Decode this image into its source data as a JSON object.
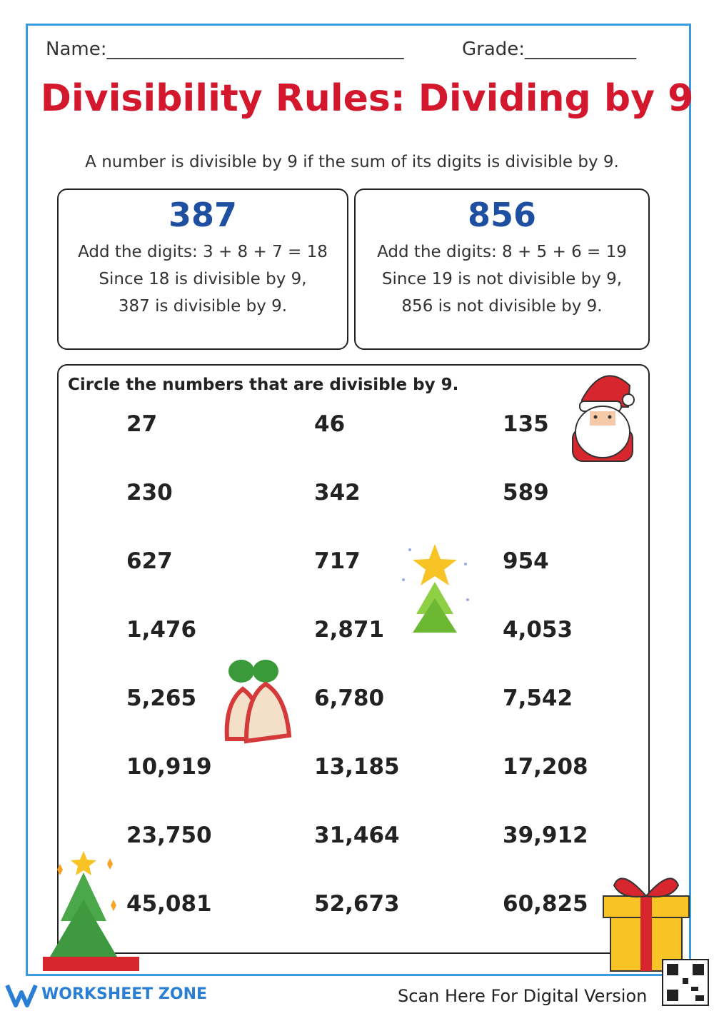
{
  "header": {
    "name_label": "Name:________________________________",
    "grade_label": "Grade:____________",
    "title": "Divisibility Rules: Dividing by 9",
    "rule": "A number is divisible by 9 if the sum of its digits is divisible by 9."
  },
  "examples": [
    {
      "number": "387",
      "lines": [
        "Add the digits: 3 + 8 + 7 = 18",
        "Since 18 is divisible by 9,",
        "387 is divisible by 9."
      ]
    },
    {
      "number": "856",
      "lines": [
        "Add the digits: 8 + 5 + 6 = 19",
        "Since 19 is not divisible by 9,",
        "856 is not divisible by 9."
      ]
    }
  ],
  "exercise": {
    "instruction": "Circle the numbers that are divisible by 9.",
    "rows": [
      [
        "27",
        "46",
        "135"
      ],
      [
        "230",
        "342",
        "589"
      ],
      [
        "627",
        "717",
        "954"
      ],
      [
        "1,476",
        "2,871",
        "4,053"
      ],
      [
        "5,265",
        "6,780",
        "7,542"
      ],
      [
        "10,919",
        "13,185",
        "17,208"
      ],
      [
        "23,750",
        "31,464",
        "39,912"
      ],
      [
        "45,081",
        "52,673",
        "60,825"
      ]
    ]
  },
  "footer": {
    "brand": "WORKSHEET ZONE",
    "scan_text": "Scan Here For Digital Version"
  }
}
